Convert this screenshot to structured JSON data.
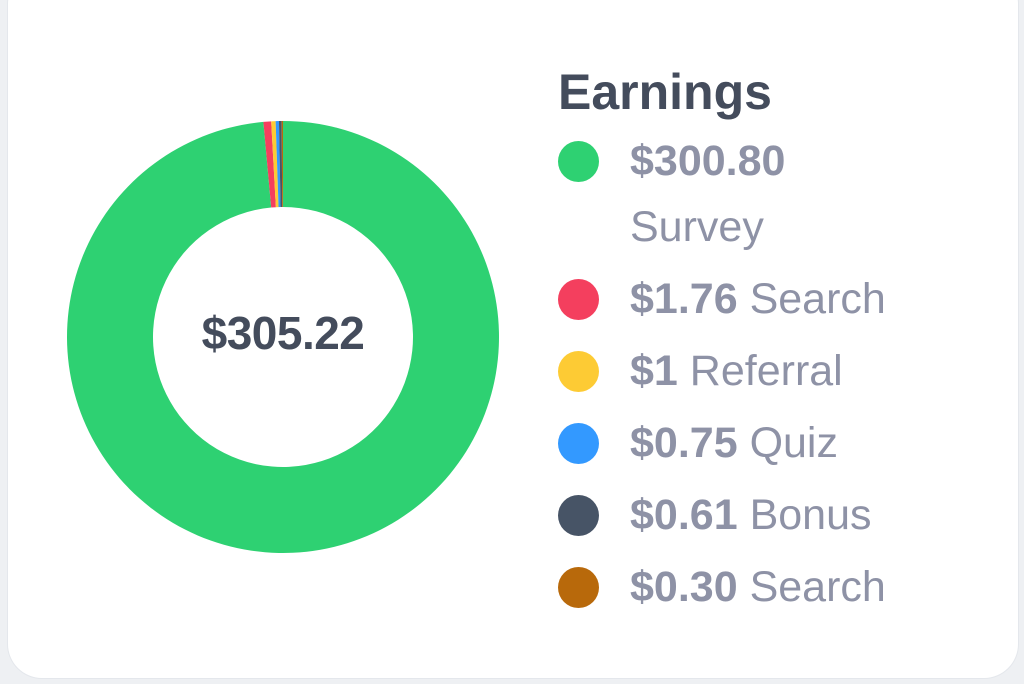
{
  "chart_data": {
    "type": "pie",
    "donut": true,
    "title": "Earnings",
    "center_label": "$305.22",
    "legend_position": "right",
    "slices": [
      {
        "label": "Survey",
        "amount_text": "$300.80",
        "value": 300.8,
        "color": "#2ed172"
      },
      {
        "label": "Search",
        "amount_text": "$1.76",
        "value": 1.76,
        "color": "#f43f5e"
      },
      {
        "label": "Referral",
        "amount_text": "$1",
        "value": 1.0,
        "color": "#fdcb34"
      },
      {
        "label": "Quiz",
        "amount_text": "$0.75",
        "value": 0.75,
        "color": "#3399ff"
      },
      {
        "label": "Bonus",
        "amount_text": "$0.61",
        "value": 0.61,
        "color": "#475466"
      },
      {
        "label": "Search",
        "amount_text": "$0.30",
        "value": 0.3,
        "color": "#b8690b"
      }
    ]
  }
}
